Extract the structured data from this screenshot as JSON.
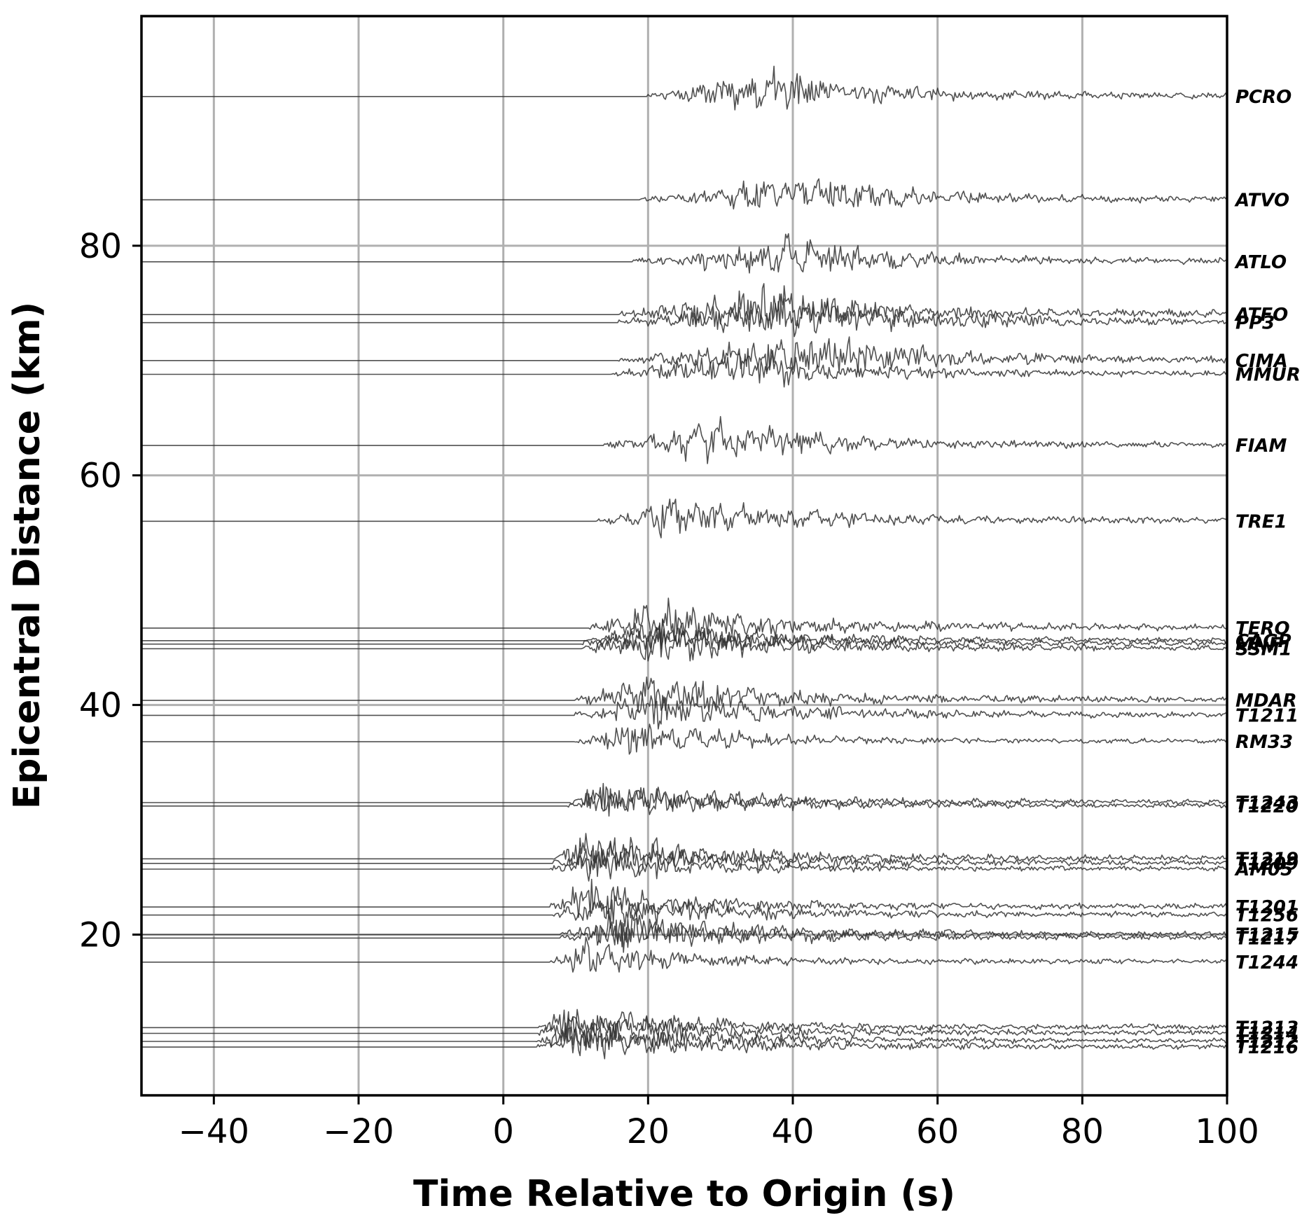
{
  "chart_data": {
    "type": "line",
    "title": "",
    "xlabel": "Time Relative to Origin (s)",
    "ylabel": "Epicentral Distance (km)",
    "xlim": [
      -50,
      100
    ],
    "ylim": [
      6,
      100
    ],
    "xticks": [
      -40,
      -20,
      0,
      20,
      40,
      60,
      80,
      100
    ],
    "xtick_labels": [
      "−40",
      "−20",
      "0",
      "20",
      "40",
      "60",
      "80",
      "100"
    ],
    "yticks": [
      20,
      40,
      60,
      80
    ],
    "ytick_labels": [
      "20",
      "40",
      "60",
      "80"
    ],
    "grid": true,
    "trace_color": "#333333",
    "series": [
      {
        "name": "PCRO",
        "distance": 93.0,
        "onset": 20.0,
        "peak": 36.0,
        "amp": 2.6
      },
      {
        "name": "ATVO",
        "distance": 84.0,
        "onset": 19.0,
        "peak": 39.0,
        "amp": 2.5
      },
      {
        "name": "ATLO",
        "distance": 78.6,
        "onset": 18.0,
        "peak": 39.0,
        "amp": 2.3
      },
      {
        "name": "ATFO",
        "distance": 74.0,
        "onset": 16.0,
        "peak": 35.0,
        "amp": 2.6
      },
      {
        "name": "PP3",
        "distance": 73.3,
        "onset": 16.0,
        "peak": 40.0,
        "amp": 2.4
      },
      {
        "name": "CIMA",
        "distance": 70.0,
        "onset": 16.0,
        "peak": 45.0,
        "amp": 2.5
      },
      {
        "name": "MMUR",
        "distance": 68.8,
        "onset": 15.0,
        "peak": 33.0,
        "amp": 2.3
      },
      {
        "name": "FIAM",
        "distance": 62.6,
        "onset": 14.0,
        "peak": 28.0,
        "amp": 2.3
      },
      {
        "name": "TRE1",
        "distance": 56.0,
        "onset": 13.0,
        "peak": 23.0,
        "amp": 2.4
      },
      {
        "name": "TERO",
        "distance": 46.7,
        "onset": 12.0,
        "peak": 20.0,
        "amp": 2.5
      },
      {
        "name": "CAGP",
        "distance": 45.6,
        "onset": 11.5,
        "peak": 20.0,
        "amp": 2.2
      },
      {
        "name": "MNF",
        "distance": 45.3,
        "onset": 11.0,
        "peak": 21.0,
        "amp": 2.2
      },
      {
        "name": "SSM1",
        "distance": 44.9,
        "onset": 11.0,
        "peak": 22.0,
        "amp": 2.3
      },
      {
        "name": "MDAR",
        "distance": 40.4,
        "onset": 10.0,
        "peak": 18.0,
        "amp": 2.4
      },
      {
        "name": "T1211",
        "distance": 39.1,
        "onset": 10.0,
        "peak": 19.0,
        "amp": 2.2
      },
      {
        "name": "RM33",
        "distance": 36.8,
        "onset": 10.0,
        "peak": 18.0,
        "amp": 2.0
      },
      {
        "name": "T1243",
        "distance": 31.5,
        "onset": 9.0,
        "peak": 13.0,
        "amp": 2.3
      },
      {
        "name": "T1220",
        "distance": 31.2,
        "onset": 9.0,
        "peak": 14.0,
        "amp": 2.1
      },
      {
        "name": "T1219",
        "distance": 26.6,
        "onset": 7.0,
        "peak": 12.0,
        "amp": 2.4
      },
      {
        "name": "T1209",
        "distance": 26.2,
        "onset": 7.0,
        "peak": 13.0,
        "amp": 2.2
      },
      {
        "name": "AM05",
        "distance": 25.7,
        "onset": 6.5,
        "peak": 12.0,
        "amp": 2.1
      },
      {
        "name": "T1201",
        "distance": 22.4,
        "onset": 6.5,
        "peak": 11.0,
        "amp": 2.4
      },
      {
        "name": "T1256",
        "distance": 21.7,
        "onset": 7.0,
        "peak": 14.0,
        "amp": 2.2
      },
      {
        "name": "T1215",
        "distance": 20.0,
        "onset": 8.0,
        "peak": 15.0,
        "amp": 2.2
      },
      {
        "name": "T1217",
        "distance": 19.7,
        "onset": 8.0,
        "peak": 16.0,
        "amp": 2.1
      },
      {
        "name": "T1244",
        "distance": 17.6,
        "onset": 6.5,
        "peak": 11.0,
        "amp": 2.0
      },
      {
        "name": "T1213",
        "distance": 11.9,
        "onset": 5.0,
        "peak": 8.0,
        "amp": 2.3
      },
      {
        "name": "T1214",
        "distance": 11.4,
        "onset": 5.0,
        "peak": 9.0,
        "amp": 2.2
      },
      {
        "name": "T1212",
        "distance": 10.7,
        "onset": 4.5,
        "peak": 9.0,
        "amp": 2.2
      },
      {
        "name": "T1216",
        "distance": 10.2,
        "onset": 4.5,
        "peak": 10.0,
        "amp": 2.1
      }
    ]
  }
}
